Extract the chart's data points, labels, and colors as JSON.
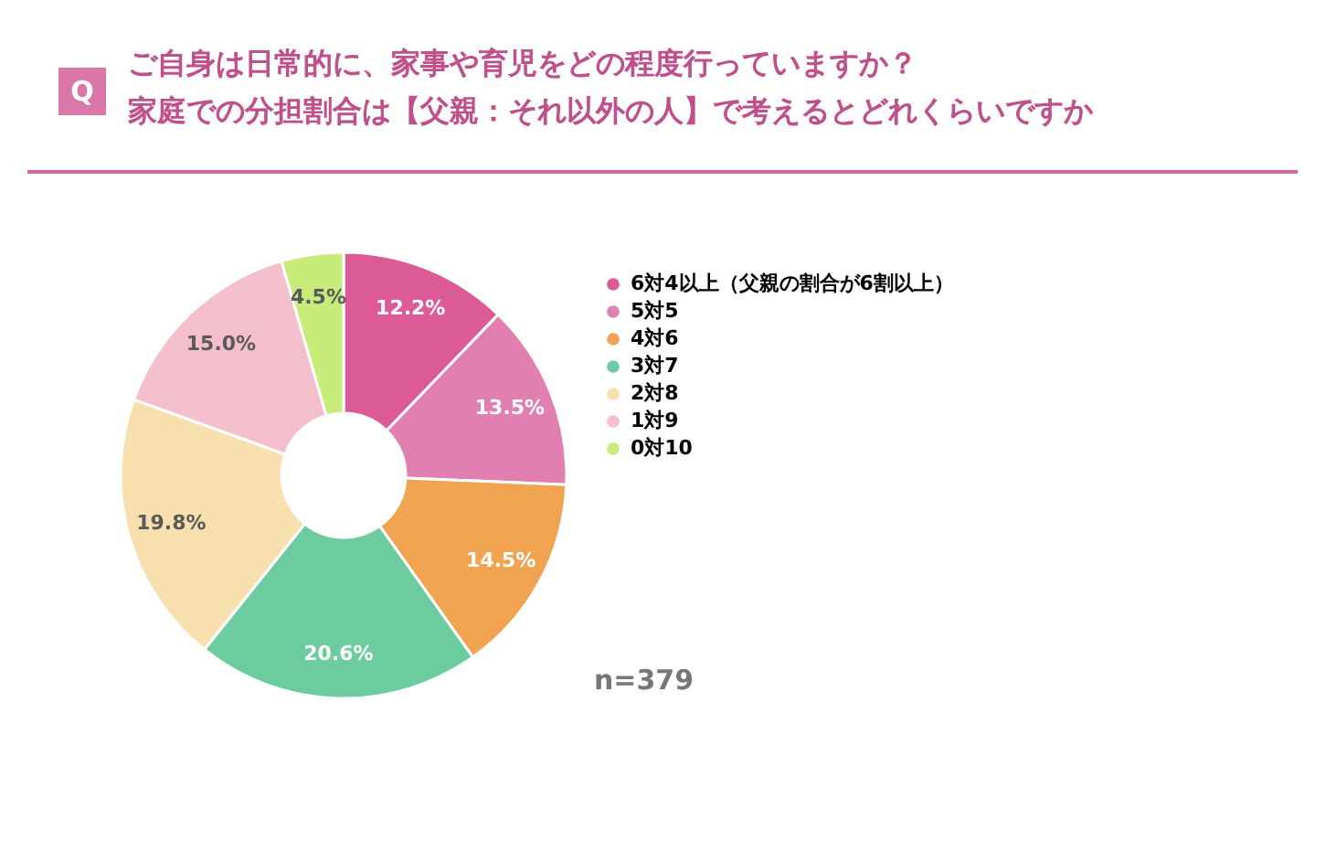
{
  "chart_data": {
    "type": "donut",
    "title": "ご自身は日常的に、家事や育児をどの程度行っていますか？",
    "subtitle": "家庭での分担割合は【父親：それ以外の人】で考えるとどれくらいですか",
    "categories": [
      "6対4以上（父親の割合が6割以上）",
      "5対5",
      "4対6",
      "3対7",
      "2対8",
      "1対9",
      "0対10"
    ],
    "values": [
      12.2,
      13.5,
      14.5,
      20.6,
      19.8,
      15.0,
      4.5
    ],
    "value_labels": [
      "12.2%",
      "13.5%",
      "14.5%",
      "20.6%",
      "19.8%",
      "15.0%",
      "4.5%"
    ],
    "colors": [
      "#dc5a96",
      "#e07fb0",
      "#f0a350",
      "#6ccca0",
      "#f7e0ae",
      "#f3bfcc",
      "#c8ec7a"
    ],
    "legend": "right",
    "annotations": [
      "Q",
      "n=379"
    ]
  }
}
